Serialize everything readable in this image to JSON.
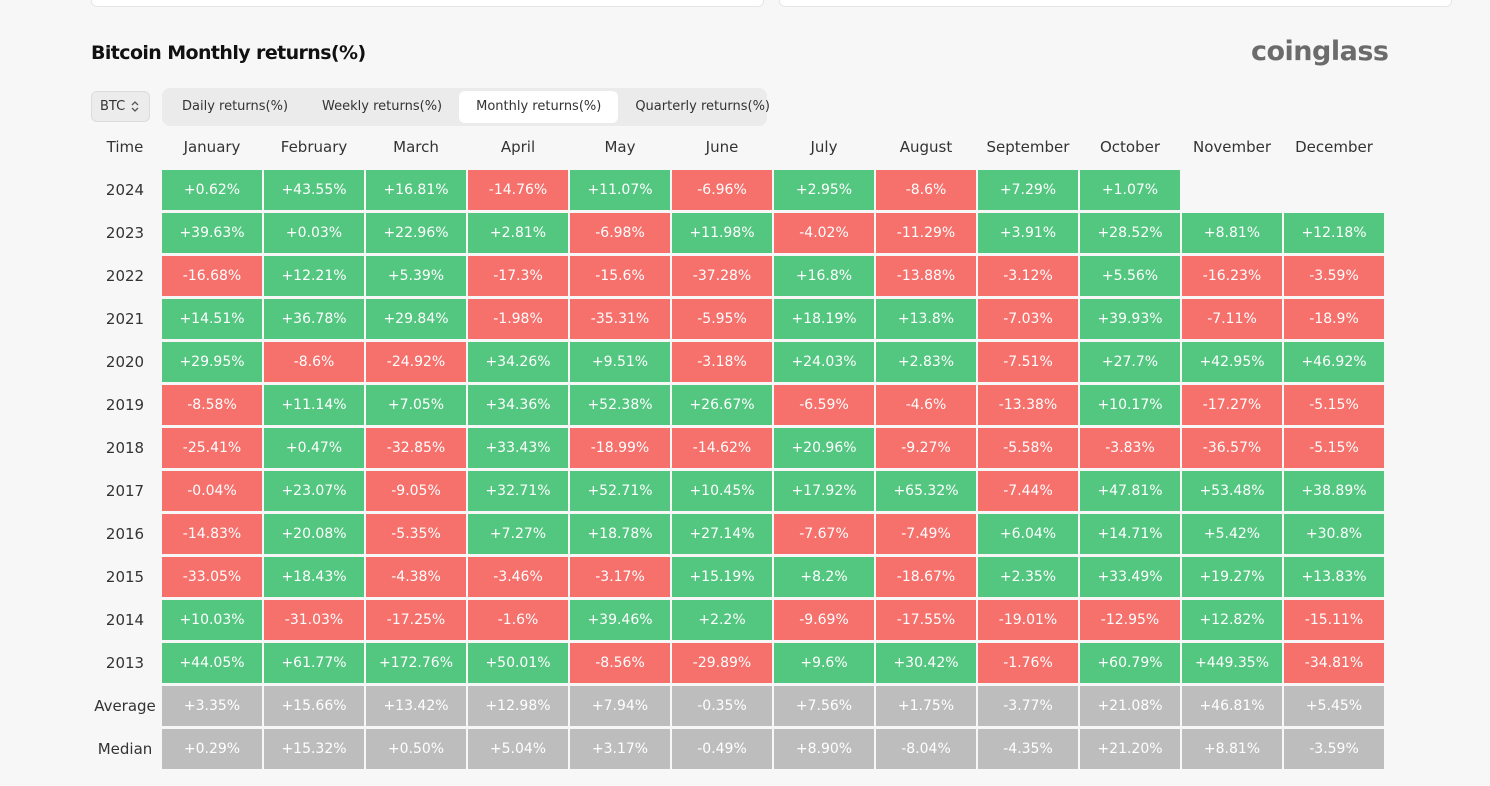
{
  "title": "Bitcoin Monthly returns(%)",
  "brand": "coinglass",
  "coin_select": {
    "value": "BTC"
  },
  "tabs": [
    "Daily returns(%)",
    "Weekly returns(%)",
    "Monthly returns(%)",
    "Quarterly returns(%)"
  ],
  "active_tab": 2,
  "table": {
    "time_header": "Time",
    "months": [
      "January",
      "February",
      "March",
      "April",
      "May",
      "June",
      "July",
      "August",
      "September",
      "October",
      "November",
      "December"
    ],
    "rows": [
      {
        "label": "2024",
        "values": [
          "+0.62%",
          "+43.55%",
          "+16.81%",
          "-14.76%",
          "+11.07%",
          "-6.96%",
          "+2.95%",
          "-8.6%",
          "+7.29%",
          "+1.07%",
          "",
          ""
        ]
      },
      {
        "label": "2023",
        "values": [
          "+39.63%",
          "+0.03%",
          "+22.96%",
          "+2.81%",
          "-6.98%",
          "+11.98%",
          "-4.02%",
          "-11.29%",
          "+3.91%",
          "+28.52%",
          "+8.81%",
          "+12.18%"
        ]
      },
      {
        "label": "2022",
        "values": [
          "-16.68%",
          "+12.21%",
          "+5.39%",
          "-17.3%",
          "-15.6%",
          "-37.28%",
          "+16.8%",
          "-13.88%",
          "-3.12%",
          "+5.56%",
          "-16.23%",
          "-3.59%"
        ]
      },
      {
        "label": "2021",
        "values": [
          "+14.51%",
          "+36.78%",
          "+29.84%",
          "-1.98%",
          "-35.31%",
          "-5.95%",
          "+18.19%",
          "+13.8%",
          "-7.03%",
          "+39.93%",
          "-7.11%",
          "-18.9%"
        ]
      },
      {
        "label": "2020",
        "values": [
          "+29.95%",
          "-8.6%",
          "-24.92%",
          "+34.26%",
          "+9.51%",
          "-3.18%",
          "+24.03%",
          "+2.83%",
          "-7.51%",
          "+27.7%",
          "+42.95%",
          "+46.92%"
        ]
      },
      {
        "label": "2019",
        "values": [
          "-8.58%",
          "+11.14%",
          "+7.05%",
          "+34.36%",
          "+52.38%",
          "+26.67%",
          "-6.59%",
          "-4.6%",
          "-13.38%",
          "+10.17%",
          "-17.27%",
          "-5.15%"
        ]
      },
      {
        "label": "2018",
        "values": [
          "-25.41%",
          "+0.47%",
          "-32.85%",
          "+33.43%",
          "-18.99%",
          "-14.62%",
          "+20.96%",
          "-9.27%",
          "-5.58%",
          "-3.83%",
          "-36.57%",
          "-5.15%"
        ]
      },
      {
        "label": "2017",
        "values": [
          "-0.04%",
          "+23.07%",
          "-9.05%",
          "+32.71%",
          "+52.71%",
          "+10.45%",
          "+17.92%",
          "+65.32%",
          "-7.44%",
          "+47.81%",
          "+53.48%",
          "+38.89%"
        ]
      },
      {
        "label": "2016",
        "values": [
          "-14.83%",
          "+20.08%",
          "-5.35%",
          "+7.27%",
          "+18.78%",
          "+27.14%",
          "-7.67%",
          "-7.49%",
          "+6.04%",
          "+14.71%",
          "+5.42%",
          "+30.8%"
        ]
      },
      {
        "label": "2015",
        "values": [
          "-33.05%",
          "+18.43%",
          "-4.38%",
          "-3.46%",
          "-3.17%",
          "+15.19%",
          "+8.2%",
          "-18.67%",
          "+2.35%",
          "+33.49%",
          "+19.27%",
          "+13.83%"
        ]
      },
      {
        "label": "2014",
        "values": [
          "+10.03%",
          "-31.03%",
          "-17.25%",
          "-1.6%",
          "+39.46%",
          "+2.2%",
          "-9.69%",
          "-17.55%",
          "-19.01%",
          "-12.95%",
          "+12.82%",
          "-15.11%"
        ]
      },
      {
        "label": "2013",
        "values": [
          "+44.05%",
          "+61.77%",
          "+172.76%",
          "+50.01%",
          "-8.56%",
          "-29.89%",
          "+9.6%",
          "+30.42%",
          "-1.76%",
          "+60.79%",
          "+449.35%",
          "-34.81%"
        ]
      }
    ],
    "summary_rows": [
      {
        "label": "Average",
        "values": [
          "+3.35%",
          "+15.66%",
          "+13.42%",
          "+12.98%",
          "+7.94%",
          "-0.35%",
          "+7.56%",
          "+1.75%",
          "-3.77%",
          "+21.08%",
          "+46.81%",
          "+5.45%"
        ]
      },
      {
        "label": "Median",
        "values": [
          "+0.29%",
          "+15.32%",
          "+0.50%",
          "+5.04%",
          "+3.17%",
          "-0.49%",
          "+8.90%",
          "-8.04%",
          "-4.35%",
          "+21.20%",
          "+8.81%",
          "-3.59%"
        ]
      }
    ]
  },
  "colors": {
    "positive": "#53c780",
    "negative": "#f6706c",
    "summary": "#bdbdbd"
  }
}
